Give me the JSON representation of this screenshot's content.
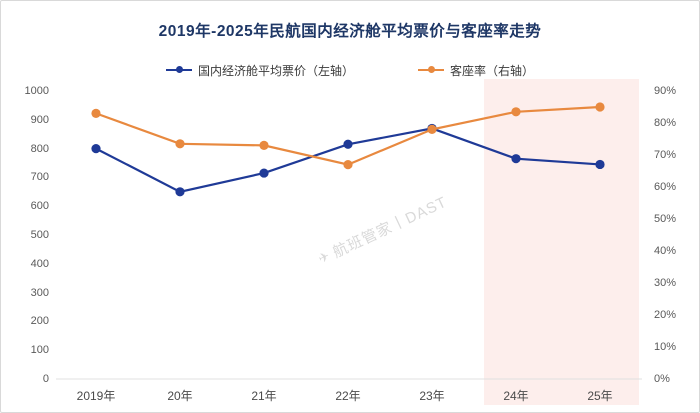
{
  "card": {
    "title": "2019年-2025年民航国内经济舱平均票价与客座率走势"
  },
  "watermark": {
    "logo_glyph": "✈",
    "text": "航班管家丨DAST"
  },
  "chart_data": {
    "type": "line",
    "title": "2019年-2025年民航国内经济舱平均票价与客座率走势",
    "categories": [
      "2019年",
      "20年",
      "21年",
      "22年",
      "23年",
      "24年",
      "25年"
    ],
    "series": [
      {
        "name": "国内经济舱平均票价（左轴）",
        "axis": "left",
        "color": "#1f3a97",
        "values": [
          800,
          650,
          715,
          815,
          870,
          765,
          745
        ]
      },
      {
        "name": "客座率（右轴）",
        "axis": "right",
        "color": "#e8893f",
        "values": [
          83,
          73.5,
          73,
          67,
          78,
          83.5,
          85
        ]
      }
    ],
    "left_axis": {
      "min": 0,
      "max": 1000,
      "step": 100,
      "suffix": ""
    },
    "right_axis": {
      "min": 0,
      "max": 90,
      "step": 10,
      "suffix": "%"
    },
    "legend_position": "top",
    "grid": false,
    "highlight": {
      "categories": [
        "24年",
        "25年"
      ],
      "color": "#fdeeec"
    },
    "axis_line_color": "#e0e0e0"
  }
}
